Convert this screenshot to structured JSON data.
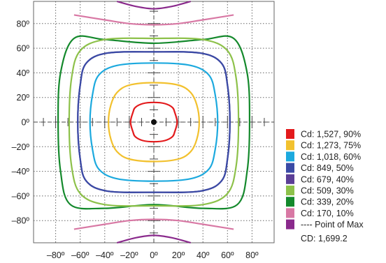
{
  "chart_data": {
    "type": "line",
    "title": "",
    "xlabel": "",
    "ylabel": "",
    "xlim": [
      -98,
      98
    ],
    "ylim": [
      -98,
      98
    ],
    "grid": true,
    "legend_position": "right",
    "x_ticks": [
      -80,
      -60,
      -40,
      -20,
      0,
      20,
      40,
      60,
      80
    ],
    "x_tick_labels": [
      "–80º",
      "–60º",
      "–40º",
      "–20º",
      "0º",
      "20º",
      "40º",
      "60º",
      "80º"
    ],
    "y_ticks": [
      80,
      60,
      40,
      20,
      0,
      -20,
      -40,
      -60,
      -80
    ],
    "y_tick_labels": [
      "80º",
      "60º",
      "40º",
      "20º",
      "0º",
      "–20º",
      "–40º",
      "–60º",
      "–80º"
    ],
    "series": [
      {
        "name": "Cd: 1,527, 90%",
        "color": "#e31a1c",
        "shape": "closed",
        "x": [
          0,
          9,
          15,
          17,
          19,
          17,
          15,
          9,
          0,
          -9,
          -15,
          -17,
          -19,
          -17,
          -15,
          -9
        ],
        "y": [
          16,
          15,
          12,
          8,
          0,
          -8,
          -12,
          -15,
          -16,
          -15,
          -12,
          -8,
          0,
          8,
          12,
          15
        ]
      },
      {
        "name": "Cd: 1,273, 75%",
        "color": "#f2c12e",
        "shape": "closed",
        "x": [
          0,
          20,
          30,
          35,
          37,
          35,
          30,
          20,
          0,
          -20,
          -30,
          -35,
          -37,
          -35,
          -30,
          -20
        ],
        "y": [
          32,
          30,
          24,
          14,
          0,
          -14,
          -24,
          -30,
          -32,
          -30,
          -24,
          -14,
          0,
          14,
          24,
          30
        ]
      },
      {
        "name": "Cd: 1,018, 60%",
        "color": "#1ca9de",
        "shape": "closed",
        "x": [
          0,
          30,
          45,
          50,
          52,
          50,
          45,
          30,
          0,
          -30,
          -45,
          -50,
          -52,
          -50,
          -45,
          -30
        ],
        "y": [
          48,
          46,
          38,
          22,
          0,
          -22,
          -38,
          -46,
          -48,
          -46,
          -38,
          -22,
          0,
          22,
          38,
          46
        ]
      },
      {
        "name": "Cd: 849, 50%",
        "color": "#3a4aa5",
        "shape": "closed",
        "x": [
          0,
          38,
          55,
          60,
          62,
          60,
          55,
          38,
          0,
          -38,
          -55,
          -60,
          -62,
          -60,
          -55,
          -38
        ],
        "y": [
          57,
          56,
          48,
          30,
          0,
          -30,
          -48,
          -56,
          -57,
          -56,
          -48,
          -30,
          0,
          30,
          48,
          56
        ]
      },
      {
        "name": "Cd: 679, 40%",
        "color": "#5b3e96",
        "shape": "closed",
        "x": [
          0,
          38,
          55,
          60,
          62,
          60,
          55,
          38,
          0,
          -38,
          -55,
          -60,
          -62,
          -60,
          -55,
          -38
        ],
        "y": [
          57,
          56,
          48,
          30,
          0,
          -30,
          -48,
          -56,
          -57,
          -56,
          -48,
          -30,
          0,
          30,
          48,
          56
        ]
      },
      {
        "name": "Cd: 509, 30%",
        "color": "#8dc14a",
        "shape": "closed",
        "x": [
          0,
          40,
          60,
          67,
          69,
          67,
          60,
          40,
          0,
          -40,
          -60,
          -67,
          -69,
          -67,
          -60,
          -40
        ],
        "y": [
          68,
          67,
          58,
          36,
          0,
          -36,
          -58,
          -67,
          -68,
          -67,
          -58,
          -36,
          0,
          36,
          58,
          67
        ]
      },
      {
        "name": "Cd: 339, 20%",
        "color": "#14892c",
        "shape": "closed",
        "x": [
          0,
          40,
          65,
          76,
          78,
          76,
          68,
          40,
          0,
          -40,
          -68,
          -76,
          -78,
          -76,
          -65,
          -40
        ],
        "y": [
          64,
          67,
          68,
          40,
          0,
          -40,
          -67,
          -70,
          -67,
          -70,
          -67,
          -40,
          0,
          40,
          68,
          67
        ]
      },
      {
        "name": "Cd: 170, 10%",
        "color": "#d878a4",
        "shape": "open",
        "curves": [
          {
            "x": [
              -65,
              -40,
              -20,
              0,
              20,
              40,
              65
            ],
            "y": [
              87,
              83,
              80,
              79,
              80,
              83,
              87
            ]
          },
          {
            "x": [
              -65,
              -40,
              -20,
              0,
              20,
              40,
              65
            ],
            "y": [
              -87,
              -83,
              -80,
              -79,
              -80,
              -83,
              -87
            ]
          }
        ]
      },
      {
        "name": "---- Point of Max",
        "color": "#8a2a8c",
        "shape": "open",
        "curves": [
          {
            "x": [
              -30,
              -15,
              0,
              15,
              30
            ],
            "y": [
              98,
              94,
              92,
              94,
              98
            ]
          },
          {
            "x": [
              -30,
              -15,
              0,
              15,
              30
            ],
            "y": [
              -98,
              -94,
              -92,
              -94,
              -98
            ]
          }
        ]
      }
    ],
    "max_point": {
      "x": 0,
      "y": 0
    },
    "legend_footer": "CD: 1,699.2"
  }
}
